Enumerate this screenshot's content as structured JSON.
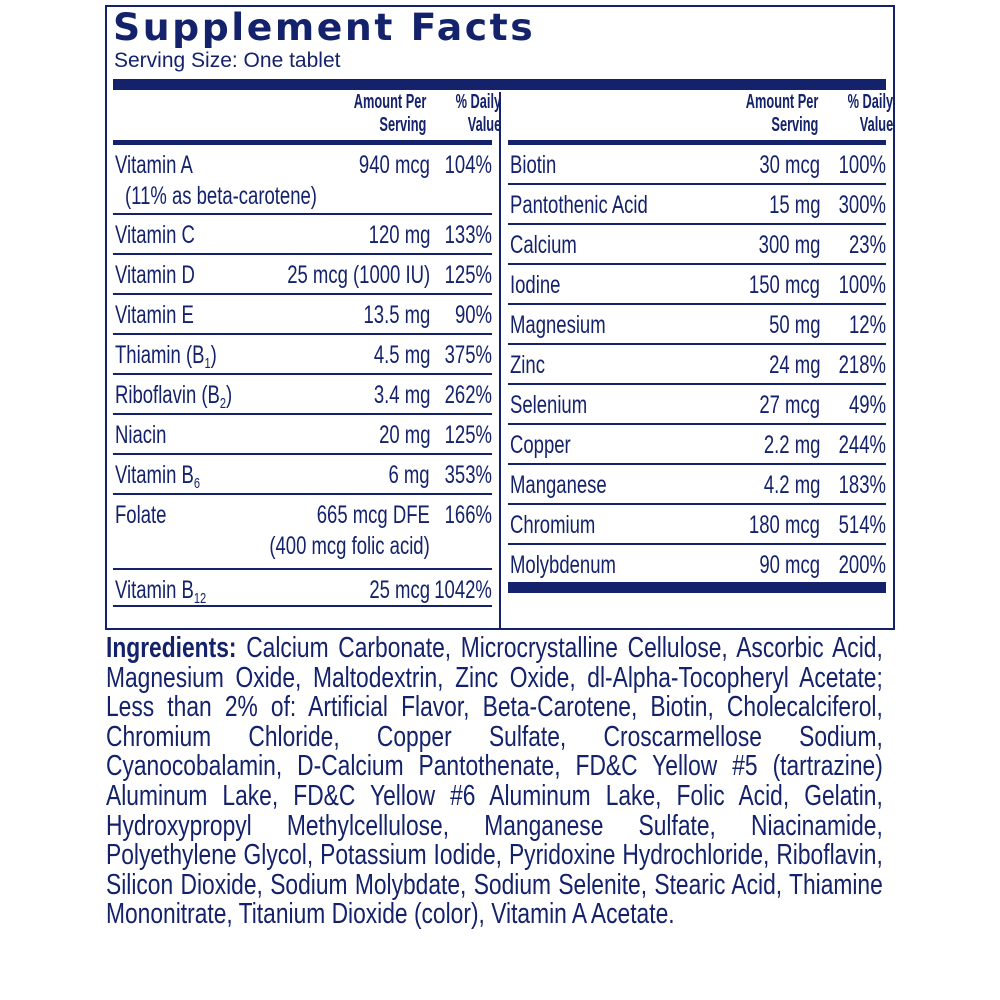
{
  "title": "Supplement Facts",
  "serving_size": "Serving Size: One tablet",
  "header": {
    "amount_line1": "Amount Per",
    "amount_line2": "Serving",
    "dv_line1": "% Daily",
    "dv_line2": "Value"
  },
  "colors": {
    "primary": "#14226b"
  },
  "left_rows": [
    {
      "name": "Vitamin A",
      "amount": "940 mcg",
      "dv": "104%",
      "note": "(11% as beta-carotene)"
    },
    {
      "name": "Vitamin C",
      "amount": "120 mg",
      "dv": "133%"
    },
    {
      "name": "Vitamin D",
      "amount": "25 mcg (1000 IU)",
      "dv": "125%"
    },
    {
      "name": "Vitamin E",
      "amount": "13.5 mg",
      "dv": "90%"
    },
    {
      "name": "Thiamin (B",
      "sub": "1",
      "suffix": ")",
      "amount": "4.5 mg",
      "dv": "375%"
    },
    {
      "name": "Riboflavin (B",
      "sub": "2",
      "suffix": ")",
      "amount": "3.4 mg",
      "dv": "262%"
    },
    {
      "name": "Niacin",
      "amount": "20 mg",
      "dv": "125%"
    },
    {
      "name": "Vitamin B",
      "sub": "6",
      "amount": "6 mg",
      "dv": "353%"
    },
    {
      "name": "Folate",
      "amount": "665 mcg DFE",
      "dv": "166%",
      "amount_note": "(400 mcg folic acid)"
    },
    {
      "name": "Vitamin B",
      "sub": "12",
      "amount": "25 mcg",
      "dv": "1042%"
    }
  ],
  "right_rows": [
    {
      "name": "Biotin",
      "amount": "30 mcg",
      "dv": "100%"
    },
    {
      "name": "Pantothenic Acid",
      "amount": "15 mg",
      "dv": "300%"
    },
    {
      "name": "Calcium",
      "amount": "300 mg",
      "dv": "23%"
    },
    {
      "name": "Iodine",
      "amount": "150 mcg",
      "dv": "100%"
    },
    {
      "name": "Magnesium",
      "amount": "50 mg",
      "dv": "12%"
    },
    {
      "name": "Zinc",
      "amount": "24 mg",
      "dv": "218%"
    },
    {
      "name": "Selenium",
      "amount": "27 mcg",
      "dv": "49%"
    },
    {
      "name": "Copper",
      "amount": "2.2 mg",
      "dv": "244%"
    },
    {
      "name": "Manganese",
      "amount": "4.2 mg",
      "dv": "183%"
    },
    {
      "name": "Chromium",
      "amount": "180 mcg",
      "dv": "514%"
    },
    {
      "name": "Molybdenum",
      "amount": "90 mcg",
      "dv": "200%"
    }
  ],
  "ingredients": {
    "label": "Ingredients:",
    "text": " Calcium Carbonate, Microcrystalline Cellulose, Ascorbic Acid, Magnesium Oxide, Maltodextrin, Zinc Oxide, dl-Alpha-Tocopheryl Acetate; Less than 2% of: Artificial Flavor, Beta-Carotene, Biotin, Cholecalciferol, Chromium Chloride, Copper Sulfate, Croscarmellose Sodium, Cyanocobalamin, D-Calcium Pantothenate, FD&C Yellow #5 (tartrazine) Aluminum Lake, FD&C Yellow #6 Aluminum Lake, Folic Acid, Gelatin, Hydroxypropyl Methylcellulose, Manganese Sulfate, Niacinamide, Polyethylene Glycol, Potassium Iodide, Pyridoxine Hydrochloride, Riboflavin, Silicon Dioxide, Sodium Molybdate, Sodium Selenite, Stearic Acid, Thiamine Mononitrate, Titanium Dioxide (color), Vitamin A Acetate."
  }
}
